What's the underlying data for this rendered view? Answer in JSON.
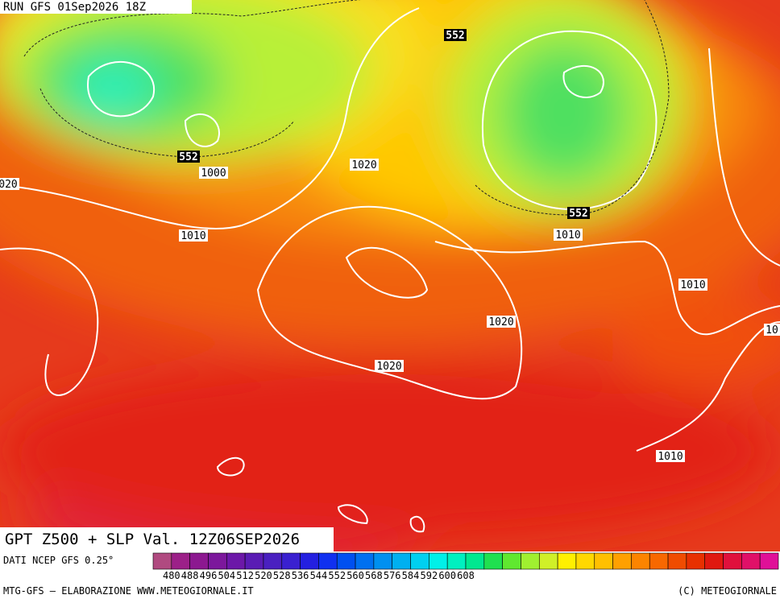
{
  "header": {
    "run": "RUN GFS 01Sep2026 18Z"
  },
  "title": "GPT Z500 + SLP Val. 12Z06SEP2026",
  "source": "DATI NCEP GFS 0.25°",
  "footer": {
    "left": "MTG-GFS — ELABORAZIONE WWW.METEOGIORNALE.IT",
    "right": "(C) METEOGIORNALE"
  },
  "contour_labels": [
    "552",
    "552",
    "552",
    "1000",
    "1010",
    "1010",
    "1010",
    "1010",
    "1020",
    "1020",
    "1020",
    "020",
    "10"
  ],
  "colorbar": {
    "colors": [
      "#b04a80",
      "#9c2088",
      "#8c1890",
      "#7c189c",
      "#6c18a8",
      "#5a1cb4",
      "#4a20c0",
      "#3a20d0",
      "#2420e0",
      "#1030f0",
      "#0050f0",
      "#0070f0",
      "#0090f0",
      "#00b0f0",
      "#00d0f0",
      "#00f0e8",
      "#00f0c0",
      "#00e890",
      "#20e050",
      "#60e830",
      "#a0f030",
      "#d0f028",
      "#fff000",
      "#ffd800",
      "#ffc000",
      "#ffa000",
      "#fc8400",
      "#f86800",
      "#f04c00",
      "#e83000",
      "#e01810",
      "#e0103c",
      "#e01068",
      "#e01098"
    ],
    "labels": [
      480,
      488,
      496,
      504,
      512,
      520,
      528,
      536,
      544,
      552,
      560,
      568,
      576,
      584,
      592,
      600,
      608
    ]
  }
}
